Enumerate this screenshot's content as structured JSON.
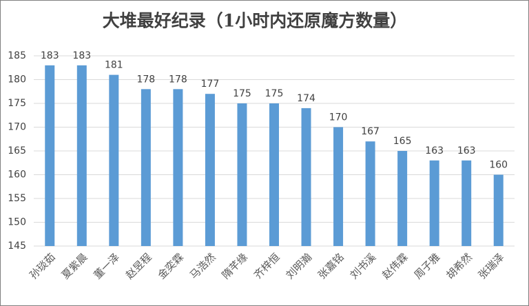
{
  "chart_data": {
    "type": "bar",
    "title": "大堆最好纪录（1小时内还原魔方数量）",
    "categories": [
      "孙琰茹",
      "夏紫晨",
      "董一泽",
      "赵昱程",
      "金奕霖",
      "马浩然",
      "隋芊缘",
      "齐梓恒",
      "刘明瀚",
      "张嘉铭",
      "刘书溪",
      "赵伟霖",
      "周子雅",
      "胡希然",
      "张瑞泽"
    ],
    "values": [
      183,
      183,
      181,
      178,
      178,
      177,
      175,
      175,
      174,
      170,
      167,
      165,
      163,
      163,
      160
    ],
    "color": "#5b9bd5",
    "ylim": [
      145,
      185
    ],
    "yticks": [
      145,
      150,
      155,
      160,
      165,
      170,
      175,
      180,
      185
    ],
    "grid": true
  }
}
